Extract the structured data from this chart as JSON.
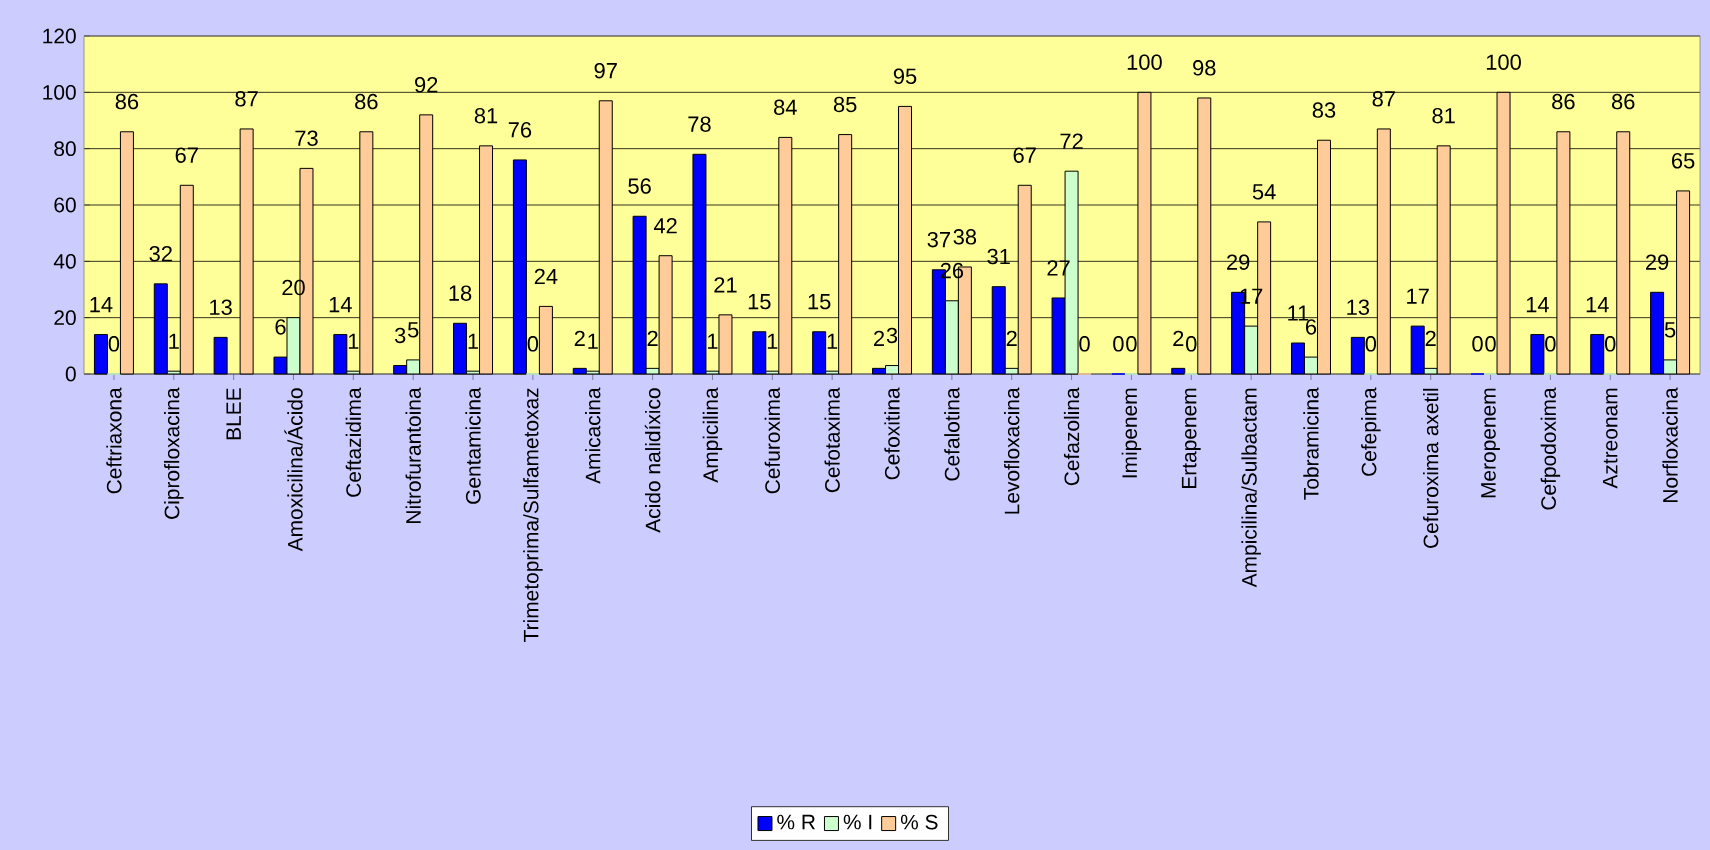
{
  "chart_data": {
    "type": "bar",
    "categories": [
      "Ceftriaxona",
      "Ciprofloxacina",
      "BLEE",
      "Amoxicilina/Ácido",
      "Ceftazidima",
      "Nitrofurantoina",
      "Gentamicina",
      "Trimetoprima/Sulfametoxaz",
      "Amicacina",
      "Acido nalidíxico",
      "Ampicilina",
      "Cefuroxima",
      "Cefotaxima",
      "Cefoxitina",
      "Cefalotina",
      "Levofloxacina",
      "Cefazolina",
      "Imipenem",
      "Ertapenem",
      "Ampicilina/Sulbactam",
      "Tobramicina",
      "Cefepima",
      "Cefuroxima axetil",
      "Meropenem",
      "Cefpodoxima",
      "Aztreonam",
      "Norfloxacina"
    ],
    "series": [
      {
        "name": "% R",
        "color": "#0000ff",
        "values": [
          14,
          32,
          13,
          6,
          14,
          3,
          18,
          76,
          2,
          56,
          78,
          15,
          15,
          2,
          37,
          31,
          27,
          0,
          2,
          29,
          11,
          13,
          17,
          0,
          14,
          14,
          29
        ]
      },
      {
        "name": "% I",
        "color": "#ccffcc",
        "values": [
          0,
          1,
          null,
          20,
          1,
          5,
          1,
          0,
          1,
          2,
          1,
          1,
          1,
          3,
          26,
          2,
          72,
          0,
          0,
          17,
          6,
          0,
          2,
          0,
          0,
          0,
          5
        ]
      },
      {
        "name": "% S",
        "color": "#ffcc99",
        "values": [
          86,
          67,
          87,
          73,
          86,
          92,
          81,
          24,
          97,
          42,
          21,
          84,
          85,
          95,
          38,
          67,
          0,
          100,
          98,
          54,
          83,
          87,
          81,
          100,
          86,
          86,
          65
        ]
      }
    ],
    "ylim": [
      0,
      120
    ],
    "yticks": [
      0,
      20,
      40,
      60,
      80,
      100,
      120
    ],
    "grid": "y",
    "legend": "bottom",
    "data_labels": true
  }
}
